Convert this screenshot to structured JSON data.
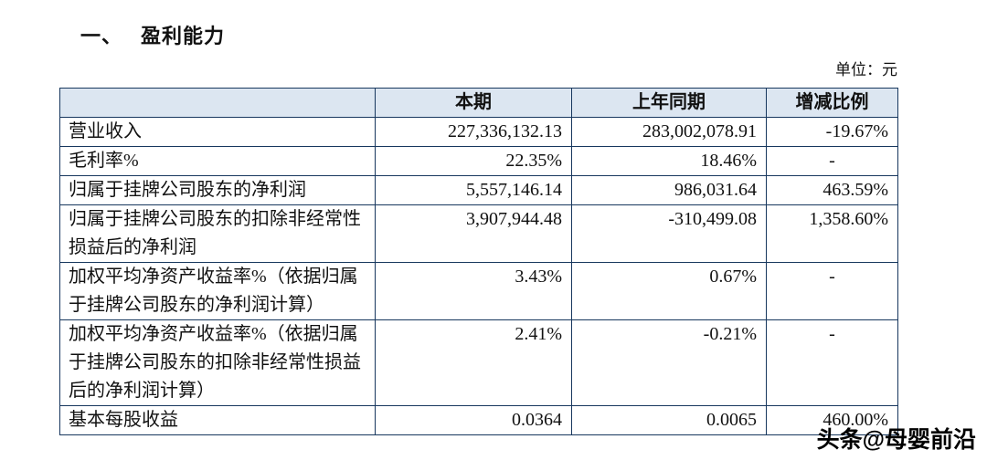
{
  "page": {
    "title_number": "一、",
    "title": "盈利能力",
    "unit_label": "单位：元",
    "watermark": "头条@母婴前沿"
  },
  "colors": {
    "table_border": "#17375e",
    "header_background": "#dce6f1",
    "text": "#111111"
  },
  "table": {
    "headers": [
      "",
      "本期",
      "上年同期",
      "增减比例"
    ],
    "rows": [
      {
        "label": "营业收入",
        "values": [
          "227,336,132.13",
          "283,002,078.91",
          "-19.67%"
        ]
      },
      {
        "label": "毛利率%",
        "values": [
          "22.35%",
          "18.46%",
          "-"
        ]
      },
      {
        "label": "归属于挂牌公司股东的净利润",
        "values": [
          "5,557,146.14",
          "986,031.64",
          "463.59%"
        ]
      },
      {
        "label": "归属于挂牌公司股东的扣除非经常性损益后的净利润",
        "values": [
          "3,907,944.48",
          "-310,499.08",
          "1,358.60%"
        ]
      },
      {
        "label": "加权平均净资产收益率%（依据归属于挂牌公司股东的净利润计算）",
        "values": [
          "3.43%",
          "0.67%",
          "-"
        ]
      },
      {
        "label": "加权平均净资产收益率%（依据归属于挂牌公司股东的扣除非经常性损益后的净利润计算）",
        "values": [
          "2.41%",
          "-0.21%",
          "-"
        ]
      },
      {
        "label": "基本每股收益",
        "values": [
          "0.0364",
          "0.0065",
          "460.00%"
        ]
      }
    ]
  }
}
